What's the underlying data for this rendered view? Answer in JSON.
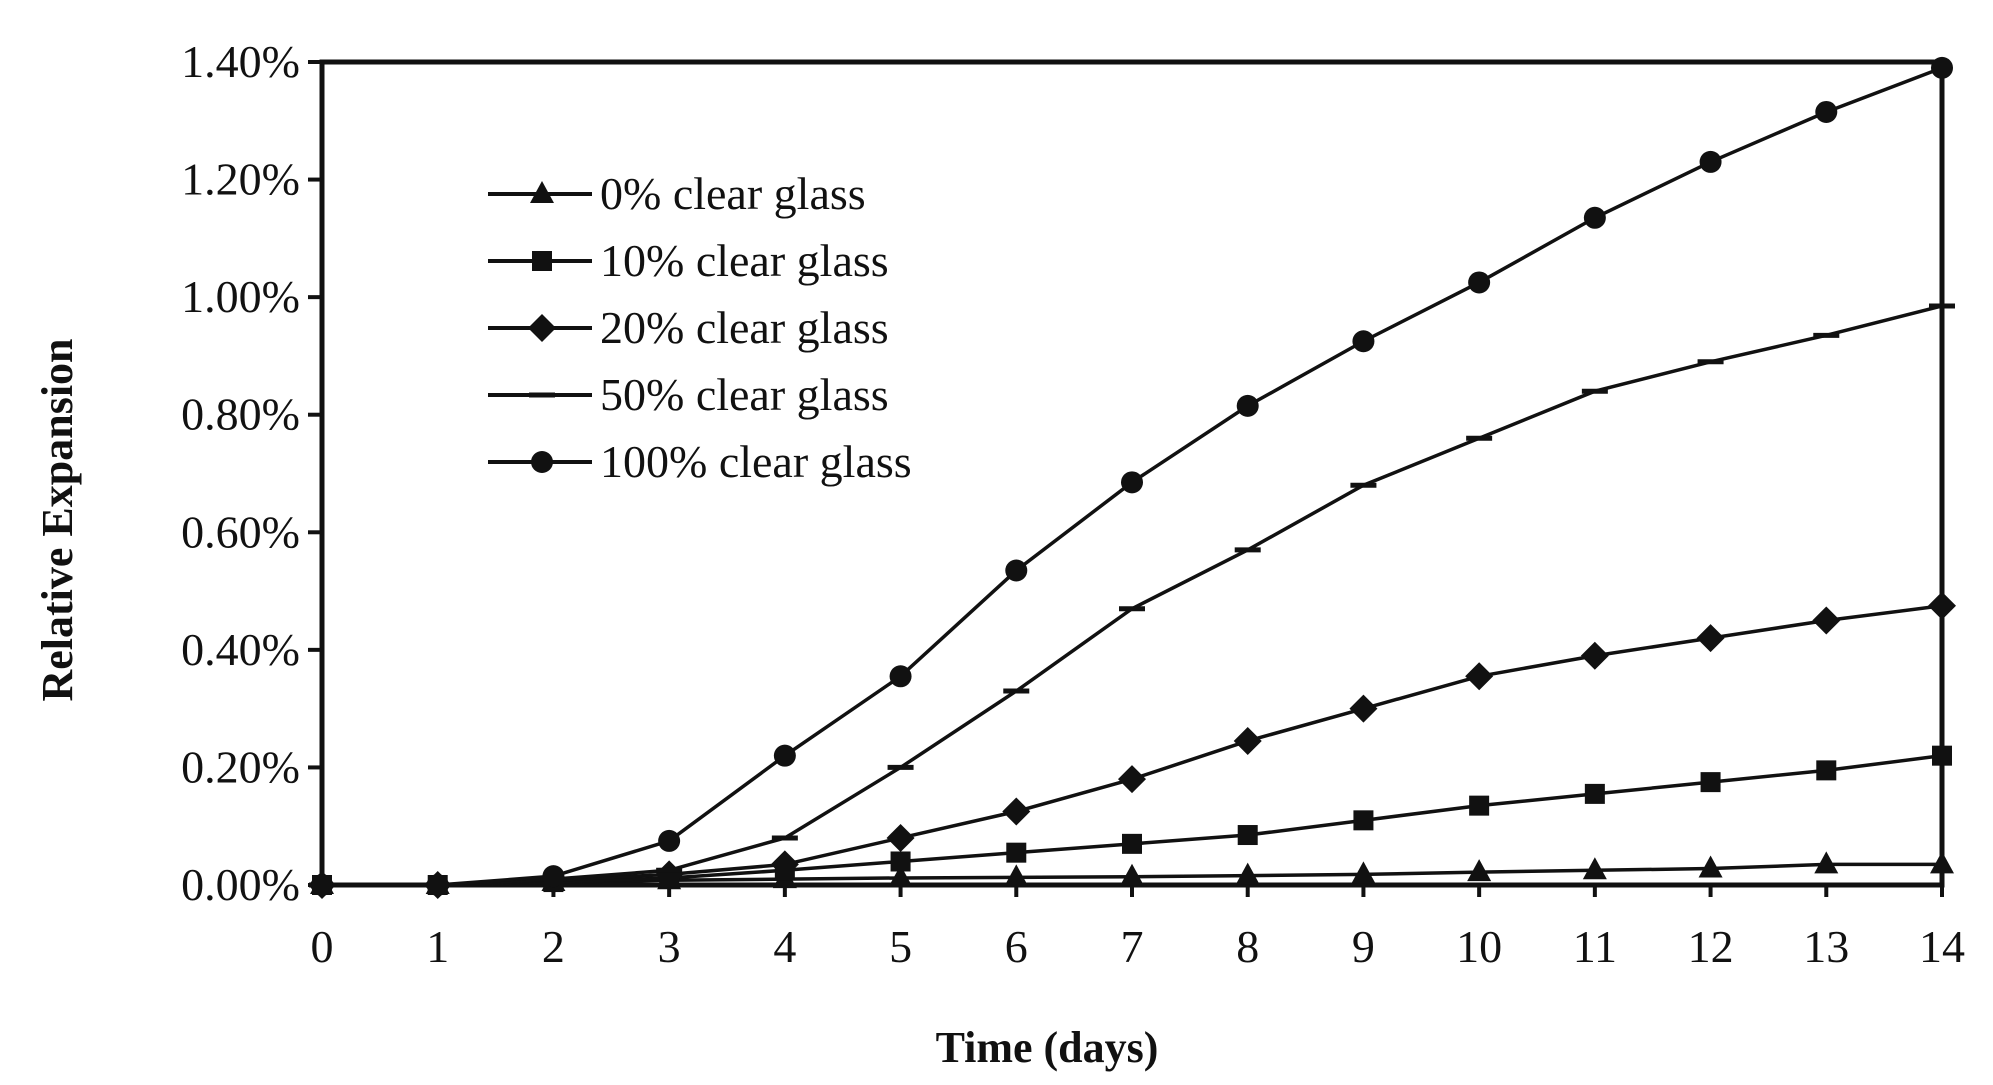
{
  "chart_data": {
    "type": "line",
    "xlabel": "Time (days)",
    "ylabel": "Relative Expansion",
    "x": [
      0,
      1,
      2,
      3,
      4,
      5,
      6,
      7,
      8,
      9,
      10,
      11,
      12,
      13,
      14
    ],
    "xlim": [
      0,
      14
    ],
    "ylim": [
      0,
      1.4
    ],
    "x_ticks": [
      "0",
      "1",
      "2",
      "3",
      "4",
      "5",
      "6",
      "7",
      "8",
      "9",
      "10",
      "11",
      "12",
      "13",
      "14"
    ],
    "y_ticks": [
      "0.00%",
      "0.20%",
      "0.40%",
      "0.60%",
      "0.80%",
      "1.00%",
      "1.20%",
      "1.40%"
    ],
    "grid": false,
    "legend_position": "top-left",
    "series": [
      {
        "name": "0% clear glass",
        "marker": "triangle",
        "values": [
          0,
          0,
          0.005,
          0.008,
          0.01,
          0.012,
          0.013,
          0.014,
          0.016,
          0.018,
          0.022,
          0.025,
          0.028,
          0.035,
          0.035
        ]
      },
      {
        "name": "10% clear glass",
        "marker": "square",
        "values": [
          0,
          0,
          0.005,
          0.012,
          0.025,
          0.04,
          0.055,
          0.07,
          0.085,
          0.11,
          0.135,
          0.155,
          0.175,
          0.195,
          0.22
        ]
      },
      {
        "name": "20% clear glass",
        "marker": "diamond",
        "values": [
          0,
          0,
          0.008,
          0.018,
          0.035,
          0.08,
          0.125,
          0.18,
          0.245,
          0.3,
          0.355,
          0.39,
          0.42,
          0.45,
          0.475
        ]
      },
      {
        "name": "50% clear glass",
        "marker": "dash",
        "values": [
          0,
          0,
          0.01,
          0.025,
          0.08,
          0.2,
          0.33,
          0.47,
          0.57,
          0.68,
          0.76,
          0.84,
          0.89,
          0.935,
          0.985
        ]
      },
      {
        "name": "100% clear glass",
        "marker": "circle",
        "values": [
          0,
          0,
          0.015,
          0.075,
          0.22,
          0.355,
          0.535,
          0.685,
          0.815,
          0.925,
          1.025,
          1.135,
          1.23,
          1.315,
          1.39
        ]
      }
    ]
  }
}
